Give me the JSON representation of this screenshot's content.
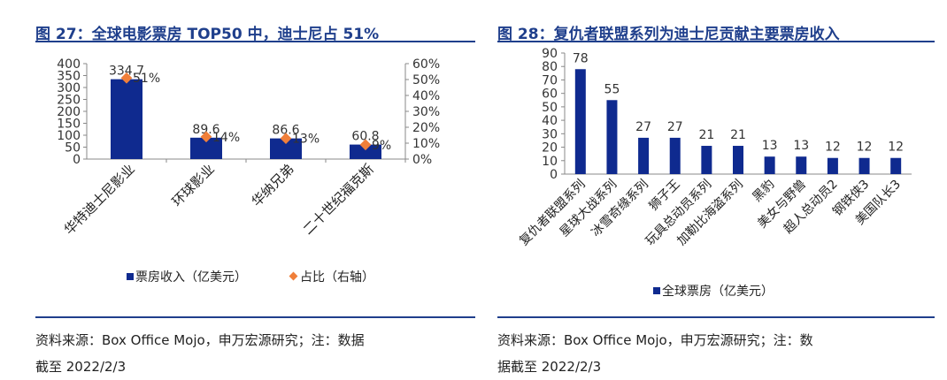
{
  "figure_left": {
    "title": "图 27：全球电影票房 TOP50 中，迪士尼占 51%",
    "source_line1": "资料来源：Box Office Mojo，申万宏源研究；注：数据",
    "source_line2": "截至 2022/2/3",
    "legend_bar": "票房收入（亿美元）",
    "legend_point": "占比（右轴）"
  },
  "figure_right": {
    "title": "图 28：复仇者联盟系列为迪士尼贡献主要票房收入",
    "source_line1": "资料来源：Box Office Mojo，申万宏源研究；注：数",
    "source_line2": "据截至 2022/2/3",
    "legend_bar": "全球票房（亿美元）"
  },
  "colors": {
    "bar": "#0f2a8f",
    "point": "#f07f3a",
    "title": "#1f3f8c"
  },
  "chart_data": [
    {
      "type": "bar",
      "categories": [
        "华特迪士尼影业",
        "环球影业",
        "华纳兄弟",
        "二十世纪福克斯"
      ],
      "series": [
        {
          "name": "票房收入（亿美元）",
          "values": [
            334.7,
            89.6,
            86.6,
            60.8
          ],
          "labels": [
            "334.7",
            "89.6",
            "86.6",
            "60.8"
          ],
          "axis": "left",
          "type": "bar"
        },
        {
          "name": "占比（右轴）",
          "values": [
            0.51,
            0.14,
            0.13,
            0.09
          ],
          "labels": [
            "51%",
            "14%",
            "13%",
            "9%"
          ],
          "axis": "right",
          "type": "scatter"
        }
      ],
      "ylim": [
        0,
        400
      ],
      "yticks": [
        "0",
        "50",
        "100",
        "150",
        "200",
        "250",
        "300",
        "350",
        "400"
      ],
      "y2lim": [
        0,
        0.6
      ],
      "y2ticks": [
        "0%",
        "10%",
        "20%",
        "30%",
        "40%",
        "50%",
        "60%"
      ],
      "legend": "bottom"
    },
    {
      "type": "bar",
      "categories": [
        "复仇者联盟系列",
        "星球大战系列",
        "冰雪奇缘系列",
        "狮子王",
        "玩具总动员系列",
        "加勒比海盗系列",
        "黑豹",
        "美女与野兽",
        "超人总动员2",
        "钢铁侠3",
        "美国队长3"
      ],
      "series": [
        {
          "name": "全球票房（亿美元）",
          "values": [
            78,
            55,
            27,
            27,
            21,
            21,
            13,
            13,
            12,
            12,
            12
          ],
          "labels": [
            "78",
            "55",
            "27",
            "27",
            "21",
            "21",
            "13",
            "13",
            "12",
            "12",
            "12"
          ]
        }
      ],
      "ylim": [
        0,
        90
      ],
      "yticks": [
        "0",
        "10",
        "20",
        "30",
        "40",
        "50",
        "60",
        "70",
        "80",
        "90"
      ],
      "legend": "bottom"
    }
  ]
}
